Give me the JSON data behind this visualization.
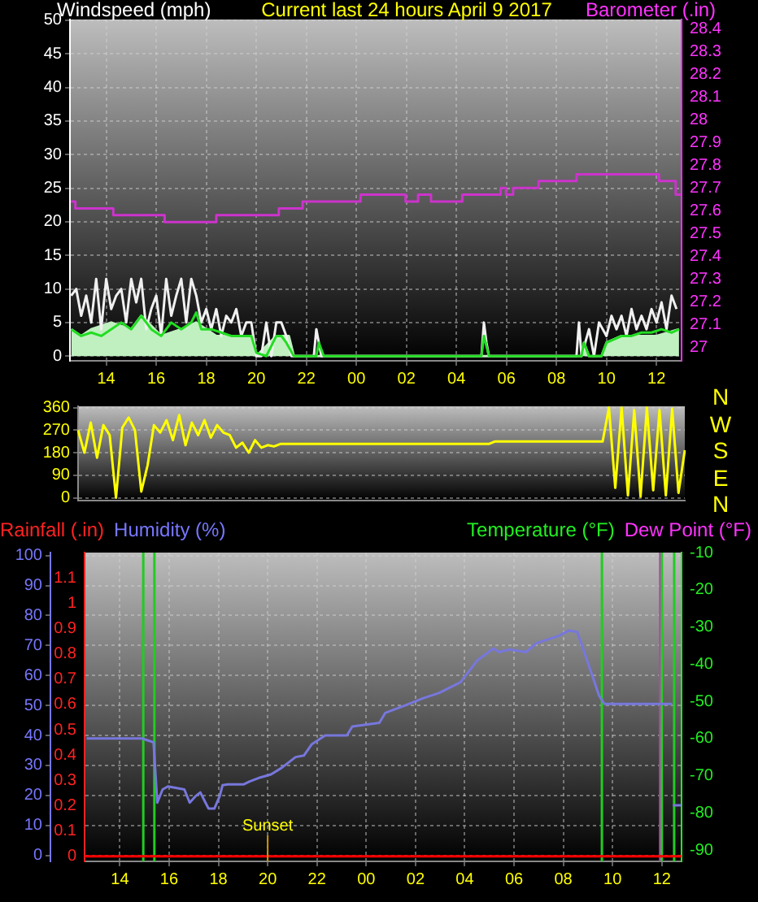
{
  "chart_data": [
    {
      "type": "line",
      "title": "Current last 24 hours April 9 2017",
      "ylabel": "Windspeed (mph)",
      "y2label": "Barometer (.in)",
      "xlim": [
        "2017-04-08T12:33",
        "2017-04-09T13:00"
      ],
      "xticks": [
        {
          "value": "2017-04-08T14:00",
          "label": "14"
        },
        {
          "value": "2017-04-08T16:00",
          "label": "16"
        },
        {
          "value": "2017-04-08T18:00",
          "label": "18"
        },
        {
          "value": "2017-04-08T20:00",
          "label": "20"
        },
        {
          "value": "2017-04-08T22:00",
          "label": "22"
        },
        {
          "value": "2017-04-09T00:00",
          "label": "00"
        },
        {
          "value": "2017-04-09T02:00",
          "label": "02"
        },
        {
          "value": "2017-04-09T04:00",
          "label": "04"
        },
        {
          "value": "2017-04-09T06:00",
          "label": "06"
        },
        {
          "value": "2017-04-09T08:00",
          "label": "08"
        },
        {
          "value": "2017-04-09T10:00",
          "label": "10"
        },
        {
          "value": "2017-04-09T12:00",
          "label": "12"
        }
      ],
      "ylim": [
        -0.7,
        50.1
      ],
      "yticks": [
        0,
        5,
        10,
        15,
        20,
        25,
        30,
        35,
        40,
        45,
        50
      ],
      "y2lim": [
        26.94,
        28.44
      ],
      "y2ticks": [
        27,
        27.1,
        27.2,
        27.3,
        27.4,
        27.5,
        27.6,
        27.7,
        27.8,
        27.9,
        28,
        28.1,
        28.2,
        28.3,
        28.4
      ],
      "grid": true,
      "series": [
        {
          "type": "area",
          "color": "#c0f0c0",
          "x": [
            "2017-04-08T12:36",
            "2017-04-08T13:00",
            "2017-04-08T13:24",
            "2017-04-08T14:12",
            "2017-04-08T15:00",
            "2017-04-08T15:24",
            "2017-04-08T16:12",
            "2017-04-08T17:00",
            "2017-04-08T17:36",
            "2017-04-08T18:24",
            "2017-04-08T19:12",
            "2017-04-08T19:48",
            "2017-04-08T20:00",
            "2017-04-08T20:48",
            "2017-04-08T21:18",
            "2017-04-08T21:30",
            "2017-04-09T09:00",
            "2017-04-09T09:06",
            "2017-04-09T09:18",
            "2017-04-09T09:48",
            "2017-04-09T10:00",
            "2017-04-09T10:36",
            "2017-04-09T11:24",
            "2017-04-09T12:00",
            "2017-04-09T12:54"
          ],
          "values": [
            4,
            3,
            4,
            5,
            4,
            6,
            3,
            4,
            5,
            3,
            3,
            3,
            0,
            3,
            3,
            0,
            0,
            2,
            0,
            0,
            2,
            3,
            3,
            3,
            4
          ]
        },
        {
          "color": "#f0f0f0",
          "x": [
            "2017-04-08T12:36",
            "2017-04-08T12:48",
            "2017-04-08T13:00",
            "2017-04-08T13:12",
            "2017-04-08T13:24",
            "2017-04-08T13:36",
            "2017-04-08T13:48",
            "2017-04-08T14:00",
            "2017-04-08T14:12",
            "2017-04-08T14:24",
            "2017-04-08T14:36",
            "2017-04-08T14:48",
            "2017-04-08T15:00",
            "2017-04-08T15:12",
            "2017-04-08T15:24",
            "2017-04-08T15:36",
            "2017-04-08T15:48",
            "2017-04-08T16:00",
            "2017-04-08T16:12",
            "2017-04-08T16:24",
            "2017-04-08T16:36",
            "2017-04-08T16:48",
            "2017-04-08T17:00",
            "2017-04-08T17:12",
            "2017-04-08T17:24",
            "2017-04-08T17:36",
            "2017-04-08T17:48",
            "2017-04-08T18:00",
            "2017-04-08T18:12",
            "2017-04-08T18:24",
            "2017-04-08T18:36",
            "2017-04-08T18:48",
            "2017-04-08T19:00",
            "2017-04-08T19:12",
            "2017-04-08T19:24",
            "2017-04-08T19:36",
            "2017-04-08T19:48",
            "2017-04-08T20:00",
            "2017-04-08T20:12",
            "2017-04-08T20:24",
            "2017-04-08T20:36",
            "2017-04-08T20:48",
            "2017-04-08T21:00",
            "2017-04-08T21:12",
            "2017-04-08T21:24",
            "2017-04-08T22:18",
            "2017-04-08T22:24",
            "2017-04-08T22:30",
            "2017-04-08T22:36",
            "2017-04-09T05:00",
            "2017-04-09T05:06",
            "2017-04-09T05:12",
            "2017-04-09T05:18",
            "2017-04-09T08:48",
            "2017-04-09T08:54",
            "2017-04-09T09:00",
            "2017-04-09T09:18",
            "2017-04-09T09:30",
            "2017-04-09T09:42",
            "2017-04-09T10:00",
            "2017-04-09T10:12",
            "2017-04-09T10:24",
            "2017-04-09T10:36",
            "2017-04-09T10:48",
            "2017-04-09T11:00",
            "2017-04-09T11:12",
            "2017-04-09T11:24",
            "2017-04-09T11:36",
            "2017-04-09T11:48",
            "2017-04-09T12:00",
            "2017-04-09T12:12",
            "2017-04-09T12:24",
            "2017-04-09T12:36",
            "2017-04-09T12:48"
          ],
          "values": [
            9,
            10,
            6,
            9,
            5,
            11.5,
            4,
            11.5,
            7,
            9,
            10,
            5,
            11.5,
            8,
            11.5,
            4,
            7,
            9,
            3,
            11.5,
            6,
            9,
            11.5,
            5,
            11.5,
            9,
            5,
            7,
            4,
            7,
            3,
            6,
            5,
            7,
            3,
            5,
            5,
            0,
            0,
            5,
            0,
            5,
            5,
            3,
            0,
            0,
            4,
            2,
            0,
            0,
            5,
            2,
            0,
            0,
            5,
            0,
            4,
            0,
            5,
            3,
            6,
            4,
            6,
            3,
            7,
            4,
            6,
            4,
            7,
            5,
            8,
            4,
            9,
            7
          ]
        },
        {
          "color": "#22dd22",
          "x": [
            "2017-04-08T12:36",
            "2017-04-08T13:00",
            "2017-04-08T13:24",
            "2017-04-08T13:48",
            "2017-04-08T14:12",
            "2017-04-08T14:36",
            "2017-04-08T15:00",
            "2017-04-08T15:24",
            "2017-04-08T15:48",
            "2017-04-08T16:12",
            "2017-04-08T16:36",
            "2017-04-08T17:00",
            "2017-04-08T17:24",
            "2017-04-08T17:36",
            "2017-04-08T17:48",
            "2017-04-08T18:12",
            "2017-04-08T18:36",
            "2017-04-08T19:00",
            "2017-04-08T19:24",
            "2017-04-08T19:48",
            "2017-04-08T20:00",
            "2017-04-08T20:24",
            "2017-04-08T20:48",
            "2017-04-08T21:00",
            "2017-04-08T21:12",
            "2017-04-08T21:30",
            "2017-04-08T22:24",
            "2017-04-08T22:30",
            "2017-04-08T22:42",
            "2017-04-09T05:00",
            "2017-04-09T05:06",
            "2017-04-09T05:18",
            "2017-04-09T09:00",
            "2017-04-09T09:06",
            "2017-04-09T09:18",
            "2017-04-09T09:48",
            "2017-04-09T10:00",
            "2017-04-09T10:18",
            "2017-04-09T10:36",
            "2017-04-09T11:00",
            "2017-04-09T11:24",
            "2017-04-09T11:48",
            "2017-04-09T12:12",
            "2017-04-09T12:36",
            "2017-04-09T12:54"
          ],
          "values": [
            4,
            3,
            3.5,
            3,
            4,
            5,
            4,
            6,
            4,
            3,
            5,
            4,
            5,
            6.5,
            4,
            4,
            3.5,
            3,
            3,
            3,
            0.5,
            0,
            3,
            3,
            2,
            0,
            0,
            2,
            0,
            0,
            3,
            0,
            0,
            2,
            0,
            0,
            2,
            2.5,
            3,
            3,
            3.5,
            3.5,
            4,
            3.5,
            4
          ]
        },
        {
          "type": "step",
          "axis": "y2",
          "color": "#cc33cc",
          "x": [
            "2017-04-08T12:35",
            "2017-04-08T12:46",
            "2017-04-08T14:17",
            "2017-04-08T16:20",
            "2017-04-08T18:24",
            "2017-04-08T20:54",
            "2017-04-08T21:51",
            "2017-04-09T00:10",
            "2017-04-09T01:58",
            "2017-04-09T02:28",
            "2017-04-09T02:59",
            "2017-04-09T04:14",
            "2017-04-09T05:46",
            "2017-04-09T05:59",
            "2017-04-09T06:16",
            "2017-04-09T07:17",
            "2017-04-09T08:48",
            "2017-04-09T12:06",
            "2017-04-09T12:46",
            "2017-04-09T13:00"
          ],
          "values": [
            27.64,
            27.61,
            27.58,
            27.55,
            27.58,
            27.61,
            27.64,
            27.67,
            27.64,
            27.67,
            27.64,
            27.67,
            27.7,
            27.67,
            27.7,
            27.73,
            27.76,
            27.73,
            27.67,
            27.67
          ]
        }
      ]
    },
    {
      "type": "line",
      "categories": [
        null,
        null,
        null,
        null,
        null,
        null,
        null,
        null,
        null,
        null,
        null,
        null,
        null,
        null,
        null,
        null,
        null,
        null,
        null,
        null,
        null,
        null,
        null,
        null,
        null,
        null,
        null,
        null,
        null,
        null,
        null,
        null,
        null,
        null,
        null,
        null,
        null,
        null,
        null,
        null,
        null,
        null,
        null,
        null,
        null,
        null,
        null,
        null,
        null,
        null,
        null,
        null,
        null,
        null,
        null,
        null,
        null,
        null,
        null,
        null,
        null,
        null,
        null,
        null,
        null,
        null,
        null,
        null,
        null,
        null,
        null,
        null,
        null,
        null,
        null,
        null,
        null,
        null,
        null,
        null,
        null,
        null,
        null,
        null,
        null,
        null,
        null,
        null,
        null,
        null,
        null,
        null,
        null,
        null,
        null,
        null,
        null
      ],
      "ylim": [
        -11,
        365
      ],
      "yticks": [
        0,
        90,
        180,
        270,
        360
      ],
      "annotations": [
        "N",
        "W",
        "S",
        "E",
        "N"
      ],
      "tick_labels": "y",
      "grid": "y",
      "series": [
        {
          "color": "#ffff00",
          "values": [
            270,
            180,
            300,
            160,
            290,
            250,
            0,
            280,
            320,
            270,
            25,
            130,
            290,
            260,
            310,
            230,
            330,
            210,
            300,
            250,
            310,
            240,
            290,
            260,
            250,
            200,
            220,
            180,
            230,
            200,
            210,
            205,
            215,
            215,
            215,
            215,
            215,
            215,
            215,
            215,
            215,
            215,
            215,
            215,
            215,
            215,
            215,
            215,
            215,
            215,
            215,
            215,
            215,
            215,
            215,
            215,
            215,
            215,
            215,
            215,
            215,
            215,
            215,
            215,
            215,
            215,
            225,
            225,
            225,
            225,
            225,
            225,
            225,
            225,
            225,
            225,
            225,
            225,
            225,
            225,
            225,
            225,
            225,
            225,
            360,
            40,
            360,
            10,
            350,
            5,
            360,
            30,
            350,
            10,
            355,
            20,
            190
          ]
        }
      ]
    },
    {
      "type": "line",
      "ylabel": "Humidity (%)",
      "y3label": "Rainfall (.in)",
      "y2label": "Temperature (°F)",
      "annotations": [
        {
          "text": "Sunset",
          "x": "2017-04-08T20:00"
        },
        "Dew Point (°F)"
      ],
      "xlim": [
        "2017-04-08T12:34",
        "2017-04-09T12:48"
      ],
      "xticks": [
        {
          "value": "2017-04-08T14:00",
          "label": "14"
        },
        {
          "value": "2017-04-08T16:00",
          "label": "16"
        },
        {
          "value": "2017-04-08T18:00",
          "label": "18"
        },
        {
          "value": "2017-04-08T20:00",
          "label": "20"
        },
        {
          "value": "2017-04-08T22:00",
          "label": "22"
        },
        {
          "value": "2017-04-09T00:00",
          "label": "00"
        },
        {
          "value": "2017-04-09T02:00",
          "label": "02"
        },
        {
          "value": "2017-04-09T04:00",
          "label": "04"
        },
        {
          "value": "2017-04-09T06:00",
          "label": "06"
        },
        {
          "value": "2017-04-09T08:00",
          "label": "08"
        },
        {
          "value": "2017-04-09T10:00",
          "label": "10"
        },
        {
          "value": "2017-04-09T12:00",
          "label": "12"
        }
      ],
      "ylim": [
        -2,
        101
      ],
      "yticks": [
        0,
        10,
        20,
        30,
        40,
        50,
        60,
        70,
        80,
        90,
        100
      ],
      "y3lim": [
        -0.02,
        1.2
      ],
      "y3ticks": [
        0,
        0.1,
        0.2,
        0.3,
        0.4,
        0.5,
        0.6,
        0.7,
        0.8,
        0.9,
        1,
        1.1
      ],
      "y2lim": [
        -93,
        -10
      ],
      "y2ticks": [
        -90,
        -80,
        -70,
        -60,
        -50,
        -40,
        -30,
        -20,
        -10
      ],
      "grid": true,
      "ref_lines": [
        {
          "axis": "x",
          "value": "2017-04-08T14:57",
          "color": "#22cc22"
        },
        {
          "axis": "x",
          "value": "2017-04-08T15:24",
          "color": "#22cc22"
        },
        {
          "axis": "x",
          "value": "2017-04-09T09:34",
          "color": "#22cc22"
        },
        {
          "axis": "x",
          "value": "2017-04-09T11:56",
          "color": "#cc33cc"
        },
        {
          "axis": "x",
          "value": "2017-04-09T12:00",
          "color": "#22cc22"
        },
        {
          "axis": "x",
          "value": "2017-04-09T12:30",
          "color": "#22cc22"
        }
      ],
      "series": [
        {
          "axis": "y3",
          "color": "#ff0000",
          "x": [
            "2017-04-08T12:34",
            "2017-04-09T12:48"
          ],
          "values": [
            0,
            0
          ]
        },
        {
          "color": "#7777dd",
          "x": [
            "2017-04-08T12:39",
            "2017-04-08T14:54",
            "2017-04-08T15:22",
            "2017-04-08T15:31",
            "2017-04-08T15:44",
            "2017-04-08T15:57",
            "2017-04-08T16:37",
            "2017-04-08T16:50",
            "2017-04-08T17:04",
            "2017-04-08T17:16",
            "2017-04-08T17:27",
            "2017-04-08T17:36",
            "2017-04-08T17:50",
            "2017-04-08T18:03",
            "2017-04-08T18:10",
            "2017-04-08T18:23",
            "2017-04-08T19:02",
            "2017-04-08T19:15",
            "2017-04-08T19:42",
            "2017-04-08T20:08",
            "2017-04-08T20:34",
            "2017-04-08T21:08",
            "2017-04-08T21:28",
            "2017-04-08T21:47",
            "2017-04-08T22:20",
            "2017-04-08T23:13",
            "2017-04-08T23:26",
            "2017-04-09T00:32",
            "2017-04-09T00:46",
            "2017-04-09T01:38",
            "2017-04-09T02:18",
            "2017-04-09T02:58",
            "2017-04-09T03:50",
            "2017-04-09T04:30",
            "2017-04-09T05:10",
            "2017-04-09T05:23",
            "2017-04-09T05:49",
            "2017-04-09T06:29",
            "2017-04-09T06:55",
            "2017-04-09T07:48",
            "2017-04-09T08:14",
            "2017-04-09T08:34",
            "2017-04-09T09:07",
            "2017-04-09T09:27",
            "2017-04-09T09:40",
            "2017-04-09T12:25",
            "2017-04-09T12:26",
            "2017-04-09T12:27",
            "2017-04-09T12:47"
          ],
          "values": [
            39,
            39,
            37.7,
            17.6,
            22,
            23,
            22,
            17.6,
            19.7,
            21,
            18,
            15.6,
            15.6,
            19.7,
            23.4,
            23.7,
            23.7,
            24.6,
            26,
            27,
            29.2,
            32.8,
            33.3,
            37,
            40,
            40,
            43,
            44.2,
            47.5,
            50.2,
            52.4,
            54.2,
            57.8,
            65,
            69,
            67.8,
            68.7,
            67.8,
            70.8,
            73.2,
            75,
            74.5,
            61.4,
            53.3,
            50.5,
            50.5,
            null,
            16.7,
            16.7
          ]
        }
      ]
    }
  ]
}
